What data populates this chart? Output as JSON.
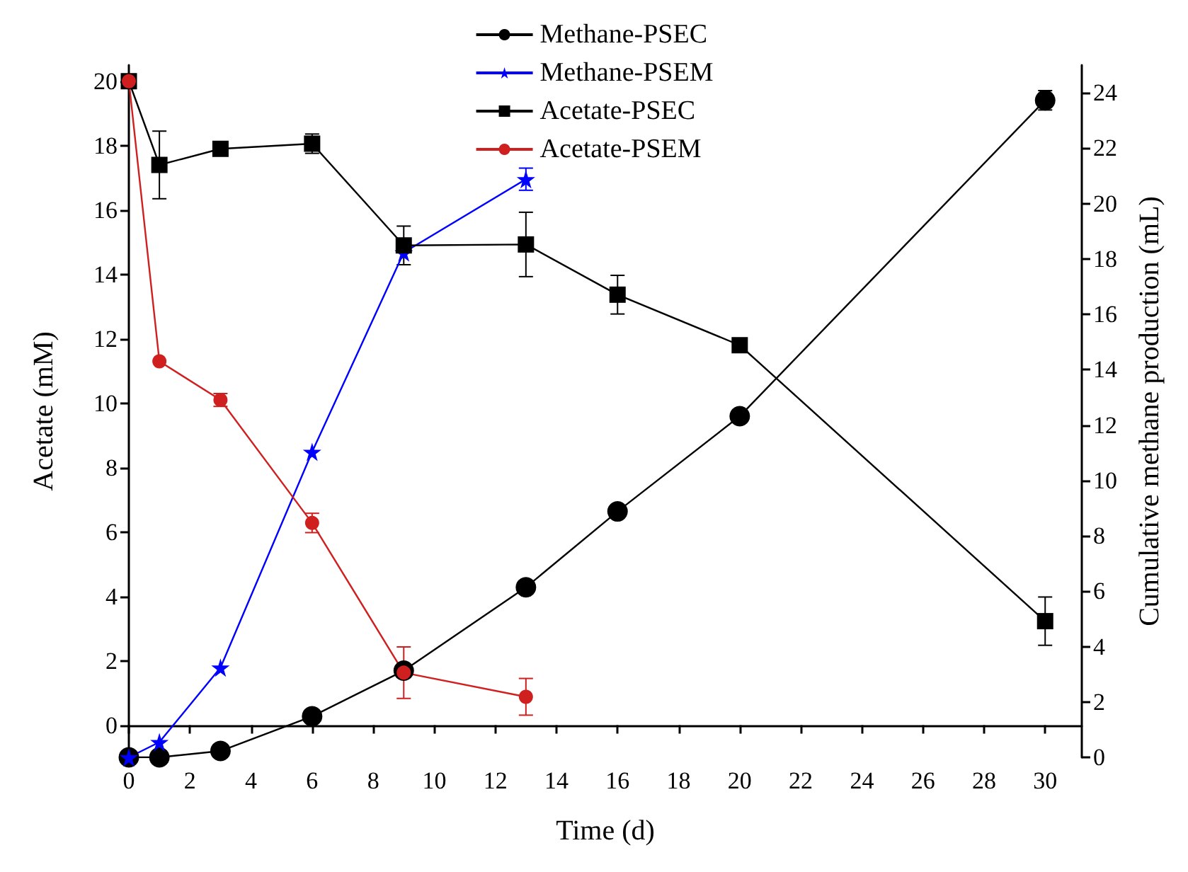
{
  "chart_data": {
    "type": "line",
    "xlabel": "Time (d)",
    "ylabel": "Acetate (mM)",
    "y2label": "Cumulative methane production (mL)",
    "x": [
      0,
      1,
      3,
      6,
      9,
      13,
      16,
      20,
      30
    ],
    "series": [
      {
        "name": "Methane-PSEC",
        "color": "#000000",
        "marker": "circle",
        "axis": "y2",
        "values": [
          0,
          0,
          0.23,
          1.48,
          3.13,
          6.14,
          8.88,
          12.32,
          23.73
        ],
        "errors": [
          null,
          null,
          null,
          null,
          null,
          null,
          null,
          null,
          0.35
        ]
      },
      {
        "name": "Methane-PSEM",
        "color": "#0000ff",
        "marker": "star",
        "axis": "y2",
        "values": [
          0,
          0.55,
          3.24,
          11.03,
          18.23,
          20.88,
          null,
          null,
          null
        ],
        "errors": [
          null,
          null,
          null,
          null,
          null,
          0.4,
          null,
          null,
          null
        ]
      },
      {
        "name": "Acetate-PSEC",
        "color": "#000000",
        "marker": "square",
        "values": [
          20,
          17.4,
          17.9,
          18.06,
          14.9,
          14.93,
          13.37,
          11.8,
          3.23
        ],
        "errors": [
          null,
          1.05,
          0.15,
          0.3,
          0.6,
          1.0,
          0.6,
          0.2,
          0.75
        ]
      },
      {
        "name": "Acetate-PSEM",
        "color": "#d01f1f",
        "marker": "circle",
        "values": [
          20,
          11.3,
          10.1,
          6.28,
          1.63,
          0.88,
          null,
          null,
          null
        ],
        "errors": [
          null,
          null,
          0.2,
          0.3,
          0.8,
          0.57,
          null,
          null,
          null
        ]
      }
    ],
    "xlim": [
      0,
      31.2
    ],
    "xticks": [
      0,
      2,
      4,
      6,
      8,
      10,
      12,
      14,
      16,
      18,
      20,
      22,
      24,
      26,
      28,
      30
    ],
    "ylim": [
      -1,
      20.5
    ],
    "yticks": [
      0,
      2,
      4,
      6,
      8,
      10,
      12,
      14,
      16,
      18,
      20
    ],
    "y2lim": [
      0,
      25
    ],
    "y2ticks": [
      0,
      2,
      4,
      6,
      8,
      10,
      12,
      14,
      16,
      18,
      20,
      22,
      24
    ],
    "legend": "top",
    "grid": false,
    "line_style": "solid"
  }
}
